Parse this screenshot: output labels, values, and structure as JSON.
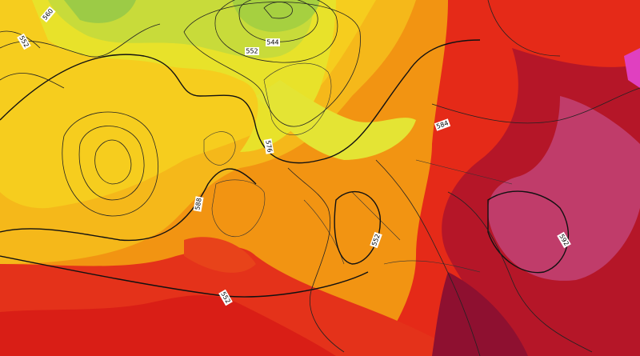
{
  "map": {
    "contour_labels": [
      560,
      552,
      544,
      552,
      576,
      588,
      584,
      592,
      552,
      552
    ]
  }
}
